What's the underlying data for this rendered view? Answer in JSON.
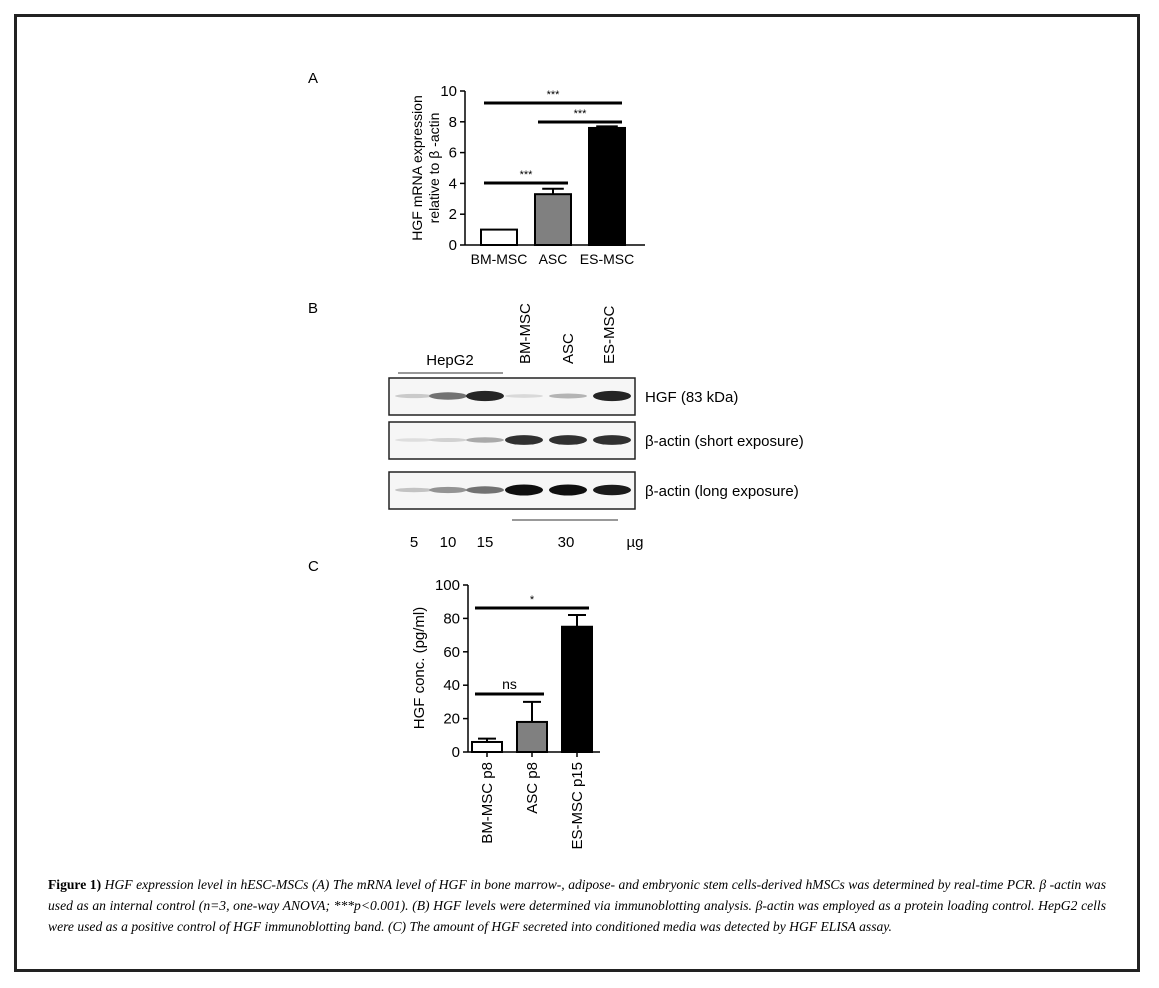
{
  "panels": {
    "a": {
      "letter": "A",
      "chart_data": {
        "type": "bar",
        "ylabel_line1": "HGF mRNA expression",
        "ylabel_line2": "relative to β -actin",
        "ylim": [
          0,
          10
        ],
        "yticks": [
          "0",
          "2",
          "4",
          "6",
          "8",
          "10"
        ],
        "categories": [
          "BM-MSC",
          "ASC",
          "ES-MSC"
        ],
        "values": [
          1.0,
          3.3,
          7.6
        ],
        "errors": [
          0,
          0.35,
          0.1
        ],
        "colors": [
          "#ffffff",
          "#808080",
          "#000000"
        ],
        "significance": [
          {
            "pair": [
              "BM-MSC",
              "ASC"
            ],
            "label": "***"
          },
          {
            "pair": [
              "ASC",
              "ES-MSC"
            ],
            "label": "***"
          },
          {
            "pair": [
              "BM-MSC",
              "ES-MSC"
            ],
            "label": "***"
          }
        ]
      }
    },
    "b": {
      "letter": "B",
      "group_label": "HepG2",
      "lane_labels": [
        "BM-MSC",
        "ASC",
        "ES-MSC"
      ],
      "blots": [
        {
          "label": "HGF (83 kDa)",
          "intensities": [
            0.15,
            0.55,
            0.9,
            0.08,
            0.25,
            0.9
          ]
        },
        {
          "label": "β-actin (short exposure)",
          "intensities": [
            0.06,
            0.12,
            0.3,
            0.85,
            0.85,
            0.85
          ]
        },
        {
          "label": "β-actin (long exposure)",
          "intensities": [
            0.18,
            0.4,
            0.55,
            1.0,
            1.0,
            0.95
          ]
        }
      ],
      "loading": {
        "l1": "5",
        "l2": "10",
        "l3": "15",
        "pooled": "30",
        "unit": "µg"
      }
    },
    "c": {
      "letter": "C",
      "chart_data": {
        "type": "bar",
        "ylabel": "HGF conc. (pg/ml)",
        "ylim": [
          0,
          100
        ],
        "yticks": [
          "0",
          "20",
          "40",
          "60",
          "80",
          "100"
        ],
        "categories": [
          "BM-MSC p8",
          "ASC p8",
          "ES-MSC p15"
        ],
        "values": [
          6,
          18,
          75
        ],
        "errors": [
          2,
          12,
          7
        ],
        "colors": [
          "#ffffff",
          "#808080",
          "#000000"
        ],
        "significance": [
          {
            "pair": [
              "BM-MSC p8",
              "ASC p8"
            ],
            "label": "ns"
          },
          {
            "pair": [
              "BM-MSC p8",
              "ES-MSC p15"
            ],
            "label": "*"
          }
        ]
      }
    }
  },
  "caption": {
    "label": "Figure 1)",
    "text": " HGF expression level in hESC-MSCs (A) The mRNA level of HGF in bone marrow-, adipose- and embryonic stem cells-derived hMSCs was determined by real-time PCR.  β -actin was used as an internal control (n=3, one-way ANOVA; ***p<0.001). (B) HGF levels were determined via immunoblotting analysis. β-actin was employed as a protein loading control. HepG2 cells were used as a positive control of HGF immunoblotting band. (C) The amount of HGF secreted into conditioned media was detected by HGF ELISA assay."
  }
}
